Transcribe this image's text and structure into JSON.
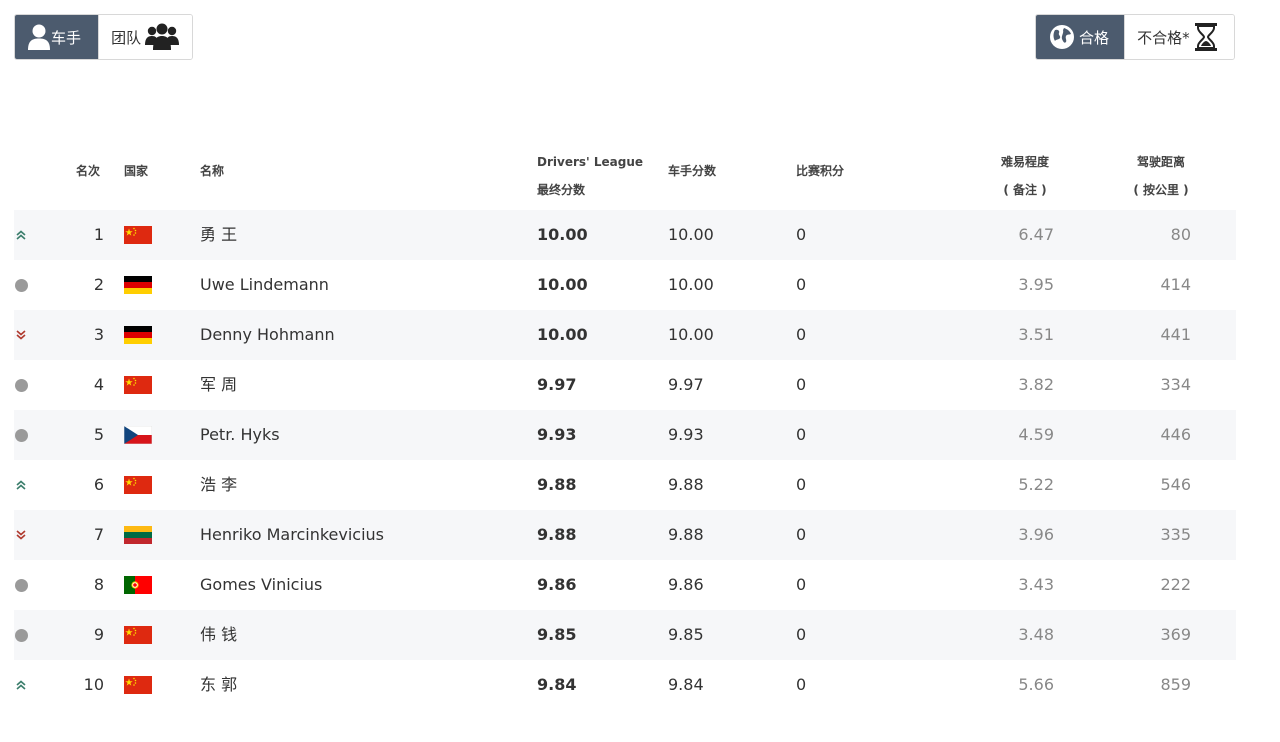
{
  "toggles": {
    "left": {
      "active_label": "车手",
      "inactive_label": "团队"
    },
    "right": {
      "active_label": "合格",
      "inactive_label": "不合格*"
    }
  },
  "columns": {
    "rank": "名次",
    "country": "国家",
    "name": "名称",
    "league_line1": "Drivers' League",
    "league_line2": "最终分数",
    "driver_score": "车手分数",
    "race_points": "比赛积分",
    "difficulty_line1": "难易程度",
    "difficulty_line2": "( 备注 )",
    "distance_line1": "驾驶距离",
    "distance_line2": "( 按公里 )"
  },
  "colors": {
    "accent": "#4c5b6e",
    "trend_up": "#3a7d6b",
    "trend_down": "#b03a2e",
    "trend_same": "#9a9a9a"
  },
  "rows": [
    {
      "trend": "up",
      "rank": "1",
      "country": "CN",
      "name": "勇 王",
      "league": "10.00",
      "driver": "10.00",
      "race": "0",
      "difficulty": "6.47",
      "distance": "80"
    },
    {
      "trend": "same",
      "rank": "2",
      "country": "DE",
      "name": "Uwe Lindemann",
      "league": "10.00",
      "driver": "10.00",
      "race": "0",
      "difficulty": "3.95",
      "distance": "414"
    },
    {
      "trend": "down",
      "rank": "3",
      "country": "DE",
      "name": "Denny Hohmann",
      "league": "10.00",
      "driver": "10.00",
      "race": "0",
      "difficulty": "3.51",
      "distance": "441"
    },
    {
      "trend": "same",
      "rank": "4",
      "country": "CN",
      "name": "军 周",
      "league": "9.97",
      "driver": "9.97",
      "race": "0",
      "difficulty": "3.82",
      "distance": "334"
    },
    {
      "trend": "same",
      "rank": "5",
      "country": "CZ",
      "name": "Petr. Hyks",
      "league": "9.93",
      "driver": "9.93",
      "race": "0",
      "difficulty": "4.59",
      "distance": "446"
    },
    {
      "trend": "up",
      "rank": "6",
      "country": "CN",
      "name": "浩 李",
      "league": "9.88",
      "driver": "9.88",
      "race": "0",
      "difficulty": "5.22",
      "distance": "546"
    },
    {
      "trend": "down",
      "rank": "7",
      "country": "LT",
      "name": "Henriko Marcinkevicius",
      "league": "9.88",
      "driver": "9.88",
      "race": "0",
      "difficulty": "3.96",
      "distance": "335"
    },
    {
      "trend": "same",
      "rank": "8",
      "country": "PT",
      "name": "Gomes Vinicius",
      "league": "9.86",
      "driver": "9.86",
      "race": "0",
      "difficulty": "3.43",
      "distance": "222"
    },
    {
      "trend": "same",
      "rank": "9",
      "country": "CN",
      "name": "伟 钱",
      "league": "9.85",
      "driver": "9.85",
      "race": "0",
      "difficulty": "3.48",
      "distance": "369"
    },
    {
      "trend": "up",
      "rank": "10",
      "country": "CN",
      "name": "东 郭",
      "league": "9.84",
      "driver": "9.84",
      "race": "0",
      "difficulty": "5.66",
      "distance": "859"
    }
  ]
}
